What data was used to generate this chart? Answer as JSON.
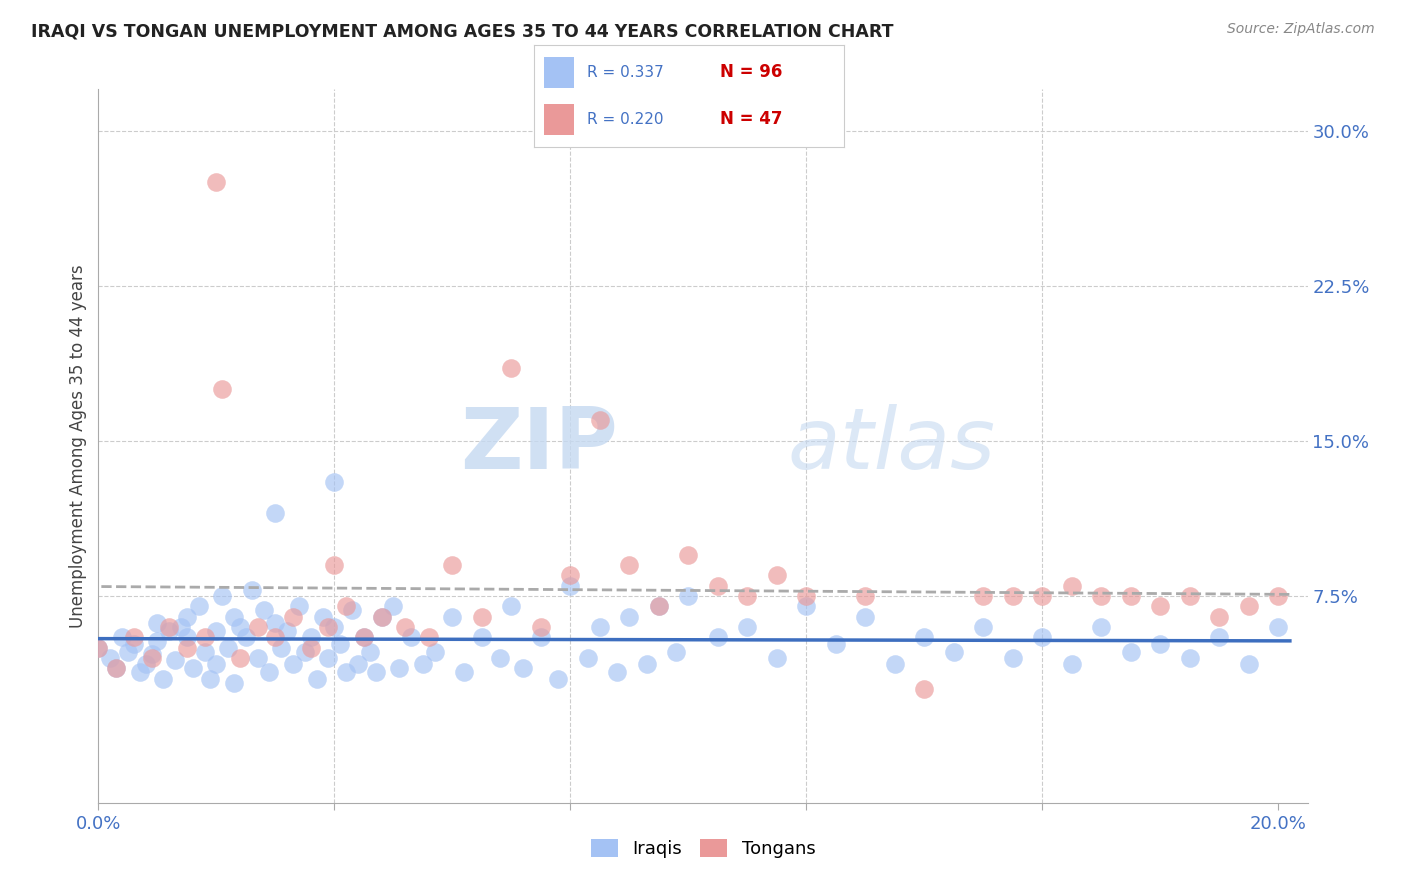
{
  "title": "IRAQI VS TONGAN UNEMPLOYMENT AMONG AGES 35 TO 44 YEARS CORRELATION CHART",
  "source": "Source: ZipAtlas.com",
  "ylabel": "Unemployment Among Ages 35 to 44 years",
  "xlim": [
    0.0,
    0.205
  ],
  "ylim": [
    -0.025,
    0.32
  ],
  "iraqi_color": "#a4c2f4",
  "tongan_color": "#ea9999",
  "iraqi_line_color": "#3d6ebf",
  "tongan_line_color": "#cc3366",
  "tongan_line_style": "--",
  "R_iraqi": "0.337",
  "N_iraqi": "96",
  "R_tongan": "0.220",
  "N_tongan": "47",
  "iraqi_x": [
    0.0,
    0.002,
    0.003,
    0.004,
    0.005,
    0.006,
    0.007,
    0.008,
    0.009,
    0.01,
    0.01,
    0.011,
    0.012,
    0.013,
    0.014,
    0.015,
    0.015,
    0.016,
    0.017,
    0.018,
    0.019,
    0.02,
    0.02,
    0.021,
    0.022,
    0.023,
    0.023,
    0.024,
    0.025,
    0.026,
    0.027,
    0.028,
    0.029,
    0.03,
    0.03,
    0.031,
    0.032,
    0.033,
    0.034,
    0.035,
    0.036,
    0.037,
    0.038,
    0.039,
    0.04,
    0.04,
    0.041,
    0.042,
    0.043,
    0.044,
    0.045,
    0.046,
    0.047,
    0.048,
    0.05,
    0.051,
    0.053,
    0.055,
    0.057,
    0.06,
    0.062,
    0.065,
    0.068,
    0.07,
    0.072,
    0.075,
    0.078,
    0.08,
    0.083,
    0.085,
    0.088,
    0.09,
    0.093,
    0.095,
    0.098,
    0.1,
    0.105,
    0.11,
    0.115,
    0.12,
    0.125,
    0.13,
    0.135,
    0.14,
    0.145,
    0.15,
    0.155,
    0.16,
    0.165,
    0.17,
    0.175,
    0.18,
    0.185,
    0.19,
    0.195,
    0.2
  ],
  "iraqi_y": [
    0.05,
    0.045,
    0.04,
    0.055,
    0.048,
    0.052,
    0.038,
    0.042,
    0.047,
    0.053,
    0.062,
    0.035,
    0.058,
    0.044,
    0.06,
    0.055,
    0.065,
    0.04,
    0.07,
    0.048,
    0.035,
    0.058,
    0.042,
    0.075,
    0.05,
    0.065,
    0.033,
    0.06,
    0.055,
    0.078,
    0.045,
    0.068,
    0.038,
    0.062,
    0.115,
    0.05,
    0.058,
    0.042,
    0.07,
    0.048,
    0.055,
    0.035,
    0.065,
    0.045,
    0.06,
    0.13,
    0.052,
    0.038,
    0.068,
    0.042,
    0.055,
    0.048,
    0.038,
    0.065,
    0.07,
    0.04,
    0.055,
    0.042,
    0.048,
    0.065,
    0.038,
    0.055,
    0.045,
    0.07,
    0.04,
    0.055,
    0.035,
    0.08,
    0.045,
    0.06,
    0.038,
    0.065,
    0.042,
    0.07,
    0.048,
    0.075,
    0.055,
    0.06,
    0.045,
    0.07,
    0.052,
    0.065,
    0.042,
    0.055,
    0.048,
    0.06,
    0.045,
    0.055,
    0.042,
    0.06,
    0.048,
    0.052,
    0.045,
    0.055,
    0.042,
    0.06
  ],
  "tongan_x": [
    0.0,
    0.003,
    0.006,
    0.009,
    0.012,
    0.015,
    0.018,
    0.021,
    0.024,
    0.027,
    0.03,
    0.033,
    0.036,
    0.039,
    0.042,
    0.045,
    0.048,
    0.052,
    0.056,
    0.06,
    0.065,
    0.07,
    0.075,
    0.08,
    0.085,
    0.09,
    0.095,
    0.1,
    0.105,
    0.11,
    0.115,
    0.12,
    0.13,
    0.14,
    0.15,
    0.155,
    0.16,
    0.165,
    0.17,
    0.175,
    0.18,
    0.185,
    0.19,
    0.195,
    0.2,
    0.02,
    0.04
  ],
  "tongan_y": [
    0.05,
    0.04,
    0.055,
    0.045,
    0.06,
    0.05,
    0.055,
    0.175,
    0.045,
    0.06,
    0.055,
    0.065,
    0.05,
    0.06,
    0.07,
    0.055,
    0.065,
    0.06,
    0.055,
    0.09,
    0.065,
    0.185,
    0.06,
    0.085,
    0.16,
    0.09,
    0.07,
    0.095,
    0.08,
    0.075,
    0.085,
    0.075,
    0.075,
    0.03,
    0.075,
    0.075,
    0.075,
    0.08,
    0.075,
    0.075,
    0.07,
    0.075,
    0.065,
    0.07,
    0.075,
    0.275,
    0.09
  ],
  "watermark_zip": "ZIP",
  "watermark_atlas": "atlas",
  "background_color": "#ffffff",
  "grid_color": "#cccccc",
  "yticks": [
    0.0,
    0.075,
    0.15,
    0.225,
    0.3
  ],
  "yticklabels": [
    "",
    "7.5%",
    "15.0%",
    "22.5%",
    "30.0%"
  ],
  "xticks": [
    0.0,
    0.04,
    0.08,
    0.12,
    0.16,
    0.2
  ],
  "xticklabels": [
    "0.0%",
    "",
    "",
    "",
    "",
    "20.0%"
  ]
}
